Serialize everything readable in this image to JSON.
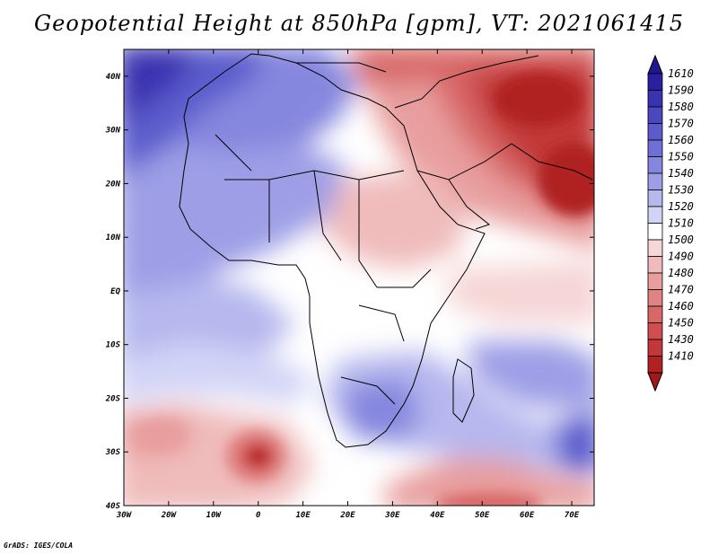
{
  "title": "Geopotential Height at 850hPa [gpm], VT: 2021061415",
  "footer": "GrADS: IGES/COLA",
  "map": {
    "lon_range": [
      -30,
      75
    ],
    "lat_range": [
      -40,
      45
    ],
    "lat_ticks": [
      {
        "lat": 40,
        "label": "40N"
      },
      {
        "lat": 30,
        "label": "30N"
      },
      {
        "lat": 20,
        "label": "20N"
      },
      {
        "lat": 10,
        "label": "10N"
      },
      {
        "lat": 0,
        "label": "EQ"
      },
      {
        "lat": -10,
        "label": "10S"
      },
      {
        "lat": -20,
        "label": "20S"
      },
      {
        "lat": -30,
        "label": "30S"
      },
      {
        "lat": -40,
        "label": "40S"
      }
    ],
    "lon_ticks": [
      {
        "lon": -30,
        "label": "30W"
      },
      {
        "lon": -20,
        "label": "20W"
      },
      {
        "lon": -10,
        "label": "10W"
      },
      {
        "lon": 0,
        "label": "0"
      },
      {
        "lon": 10,
        "label": "10E"
      },
      {
        "lon": 20,
        "label": "20E"
      },
      {
        "lon": 30,
        "label": "30E"
      },
      {
        "lon": 40,
        "label": "40E"
      },
      {
        "lon": 50,
        "label": "50E"
      },
      {
        "lon": 60,
        "label": "60E"
      },
      {
        "lon": 70,
        "label": "70E"
      }
    ]
  },
  "colorbar": {
    "levels": [
      {
        "label": "1610",
        "color": "#2a1f9c"
      },
      {
        "label": "1590",
        "color": "#3a33b0"
      },
      {
        "label": "1580",
        "color": "#4a47c0"
      },
      {
        "label": "1570",
        "color": "#5b5bcc"
      },
      {
        "label": "1560",
        "color": "#6f70d6"
      },
      {
        "label": "1550",
        "color": "#8586de"
      },
      {
        "label": "1540",
        "color": "#9d9ee6"
      },
      {
        "label": "1530",
        "color": "#b6b8ee"
      },
      {
        "label": "1520",
        "color": "#d2d4f6"
      },
      {
        "label": "1510",
        "color": "#ffffff"
      },
      {
        "label": "1500",
        "color": "#f6d6d6"
      },
      {
        "label": "1490",
        "color": "#f0bbbb"
      },
      {
        "label": "1480",
        "color": "#e89e9e"
      },
      {
        "label": "1470",
        "color": "#e08383"
      },
      {
        "label": "1460",
        "color": "#d86868"
      },
      {
        "label": "1450",
        "color": "#d04e4e"
      },
      {
        "label": "1430",
        "color": "#c23737"
      },
      {
        "label": "1410",
        "color": "#b02222"
      }
    ],
    "top_color": "#1f1690",
    "bottom_color": "#a01818"
  }
}
